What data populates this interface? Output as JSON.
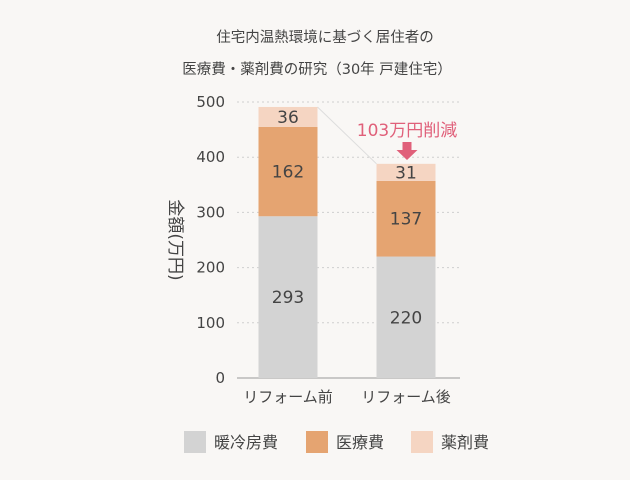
{
  "chart_data": {
    "type": "bar",
    "stacked": true,
    "title": [
      "住宅内温熱環境に基づく居住者の",
      "医療費・薬剤費の研究（30年 戸建住宅）"
    ],
    "ylabel": "金額(万円)",
    "xlabel": "",
    "ylim": [
      0,
      500
    ],
    "yticks": [
      0,
      100,
      200,
      300,
      400,
      500
    ],
    "grid": true,
    "categories": [
      "リフォーム前",
      "リフォーム後"
    ],
    "series": [
      {
        "name": "暖冷房費",
        "values": [
          293,
          220
        ],
        "color": "#d3d3d3"
      },
      {
        "name": "医療費",
        "values": [
          162,
          137
        ],
        "color": "#e5a471"
      },
      {
        "name": "薬剤費",
        "values": [
          36,
          31
        ],
        "color": "#f5d5c2"
      }
    ],
    "annotation": {
      "text": "103万円削減",
      "color": "#e0607a"
    },
    "legend_position": "bottom"
  }
}
